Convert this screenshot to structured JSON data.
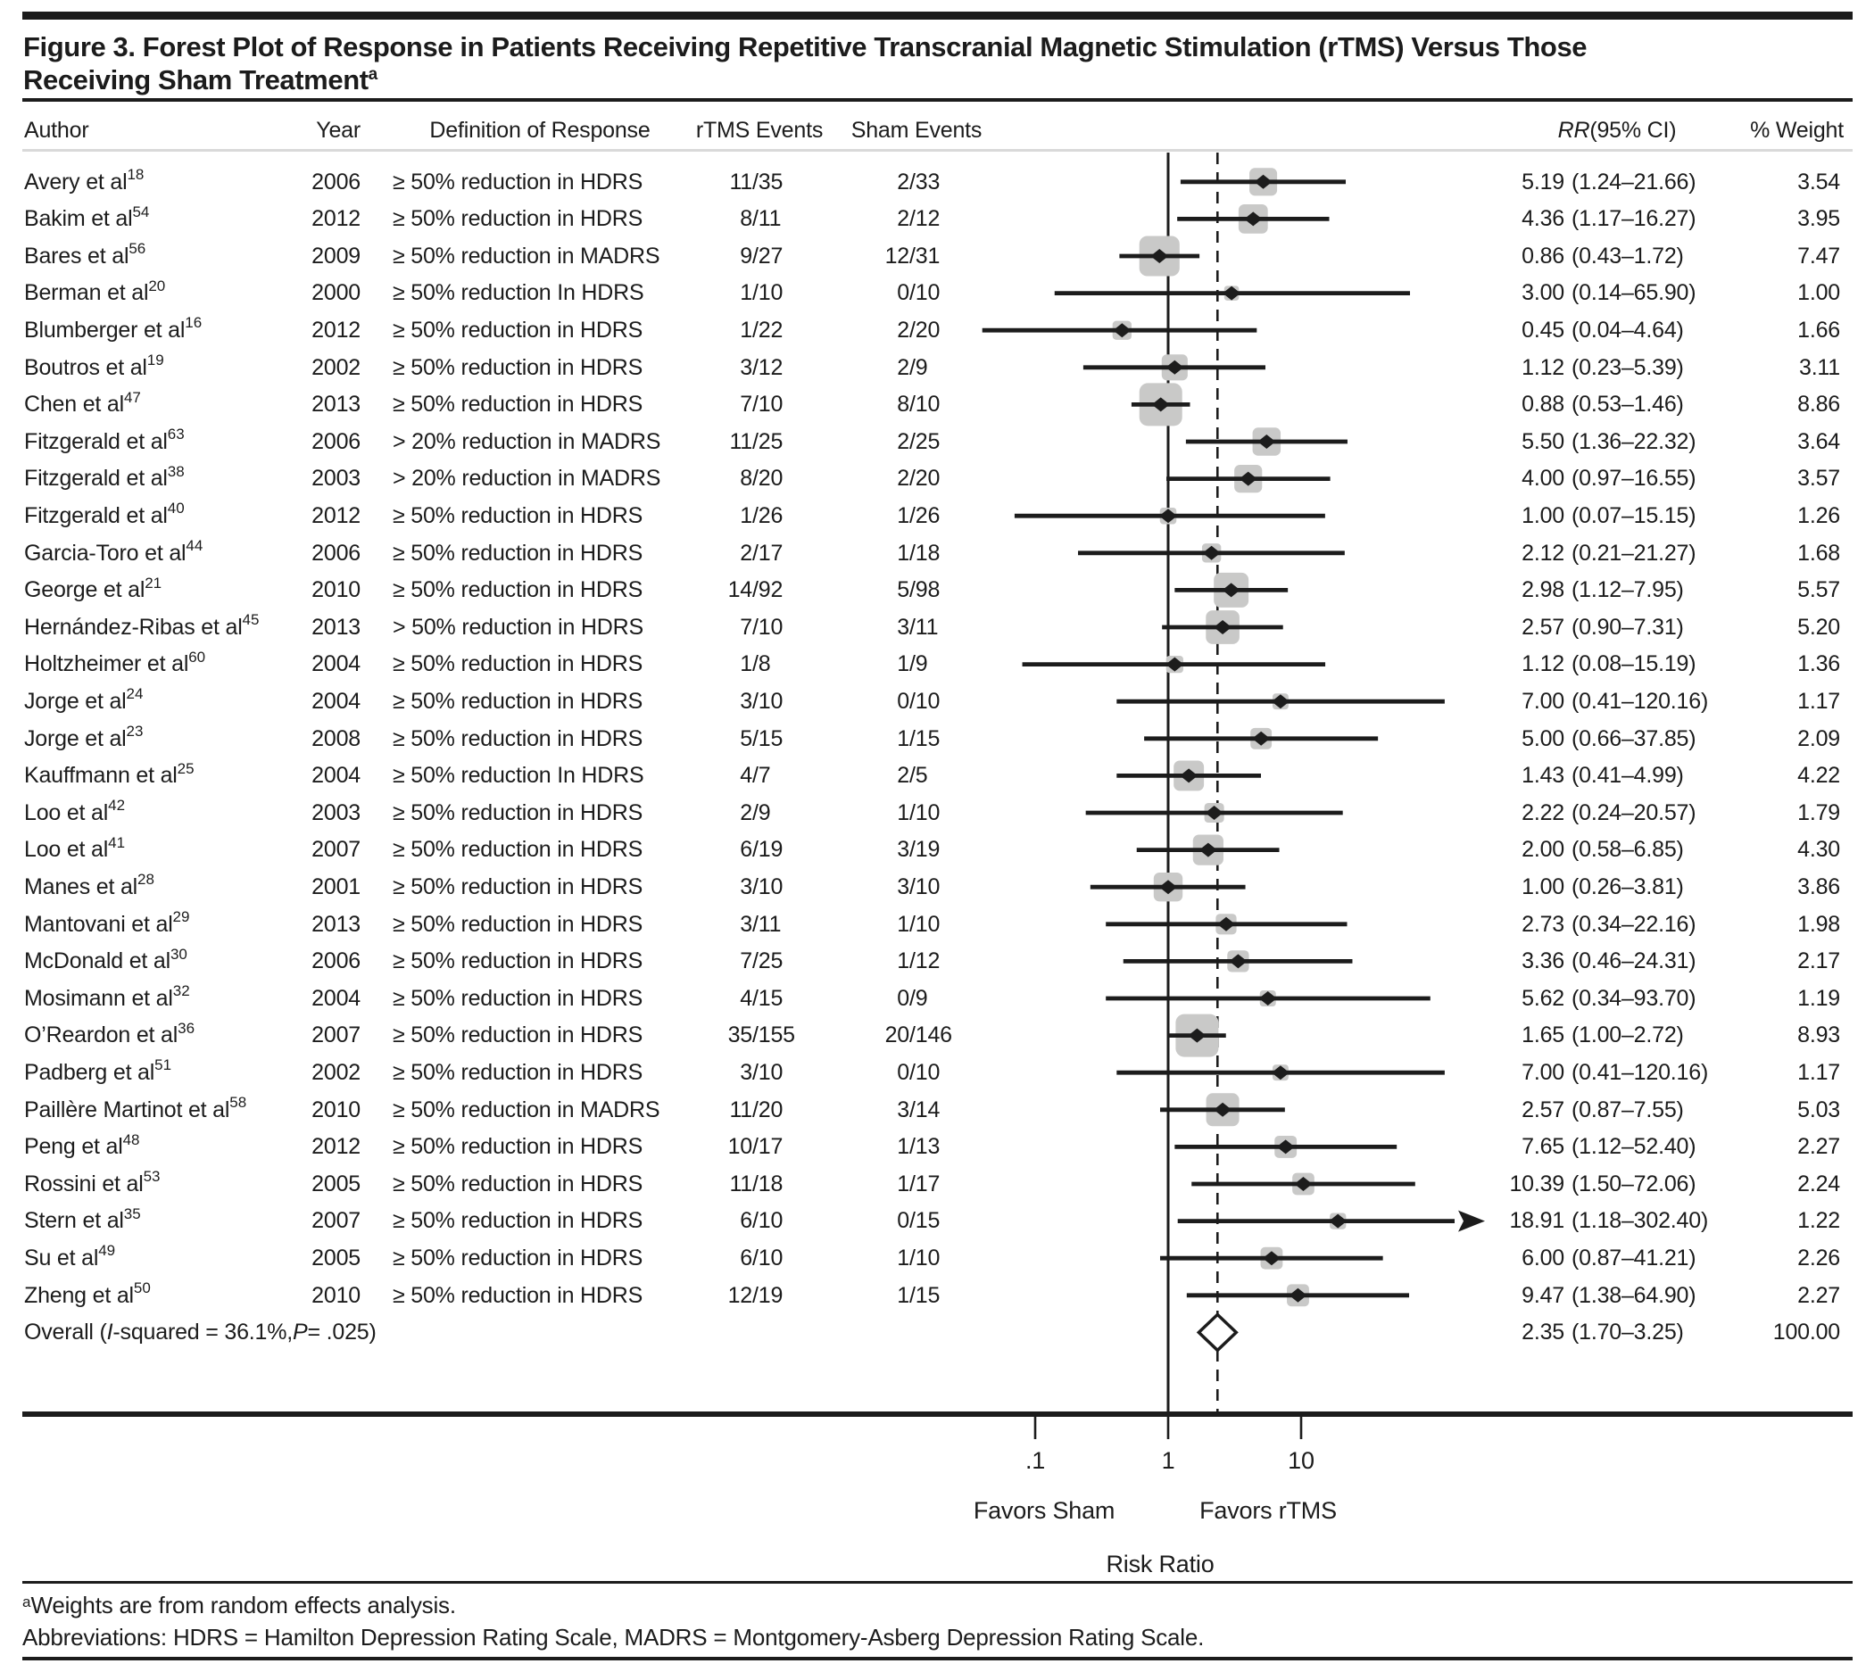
{
  "figure": {
    "title_line1": "Figure 3. Forest Plot of Response in Patients Receiving Repetitive Transcranial Magnetic Stimulation (rTMS) Versus Those",
    "title_line2": "Receiving Sham Treatment",
    "title_sup": "a"
  },
  "columns": {
    "author": "Author",
    "year": "Year",
    "definition": "Definition of Response",
    "rtms_events": "rTMS Events",
    "sham_events": "Sham Events",
    "rr_italic": "RR",
    "rr_rest": " (95% CI)",
    "weight": "% Weight"
  },
  "axis": {
    "tick_labels": [
      ".1",
      "1",
      "10"
    ],
    "favors_sham": "Favors Sham",
    "favors_rtms": "Favors rTMS",
    "xlabel": "Risk Ratio"
  },
  "footnotes": {
    "sup": "a",
    "line1": "Weights are from random effects analysis.",
    "line2": "Abbreviations: HDRS = Hamilton Depression Rating Scale, MADRS = Montgomery-Asberg Depression Rating Scale."
  },
  "colors": {
    "text": "#1c1c1c",
    "marker_fill": "#c9c9c8",
    "header_rule": "#d9d9d9"
  },
  "chart_data": {
    "type": "scatter",
    "variant": "forest_plot",
    "title": "Forest Plot of Response in Patients Receiving rTMS Versus Those Receiving Sham Treatment",
    "xlabel": "Risk Ratio",
    "x_scale": "log10",
    "x_tick_values": [
      0.1,
      1,
      10
    ],
    "reference_line": 1,
    "overall_dashed_line": 2.35,
    "legend_left": "Favors Sham",
    "legend_right": "Favors rTMS",
    "studies": [
      {
        "author": "Avery et al",
        "ref": "18",
        "year": "2006",
        "definition": "≥ 50% reduction in HDRS",
        "rtms_events": "11/35",
        "sham_events": "2/33",
        "rr": 5.19,
        "ci_lo": 1.24,
        "ci_hi": 21.66,
        "rr_label": "5.19",
        "ci_label": "(1.24–21.66)",
        "weight": 3.54,
        "weight_label": "3.54",
        "arrow": false
      },
      {
        "author": "Bakim et al",
        "ref": "54",
        "year": "2012",
        "definition": "≥ 50% reduction in HDRS",
        "rtms_events": "8/11",
        "sham_events": "2/12",
        "rr": 4.36,
        "ci_lo": 1.17,
        "ci_hi": 16.27,
        "rr_label": "4.36",
        "ci_label": "(1.17–16.27)",
        "weight": 3.95,
        "weight_label": "3.95",
        "arrow": false
      },
      {
        "author": "Bares et al",
        "ref": "56",
        "year": "2009",
        "definition": "≥ 50% reduction in MADRS",
        "rtms_events": "9/27",
        "sham_events": "12/31",
        "rr": 0.86,
        "ci_lo": 0.43,
        "ci_hi": 1.72,
        "rr_label": "0.86",
        "ci_label": "(0.43–1.72)",
        "weight": 7.47,
        "weight_label": "7.47",
        "arrow": false
      },
      {
        "author": "Berman et al",
        "ref": "20",
        "year": "2000",
        "definition": "≥ 50% reduction In HDRS",
        "rtms_events": "1/10",
        "sham_events": "0/10",
        "rr": 3.0,
        "ci_lo": 0.14,
        "ci_hi": 65.9,
        "rr_label": "3.00",
        "ci_label": "(0.14–65.90)",
        "weight": 1.0,
        "weight_label": "1.00",
        "arrow": false
      },
      {
        "author": "Blumberger et al",
        "ref": "16",
        "year": "2012",
        "definition": "≥ 50% reduction in HDRS",
        "rtms_events": "1/22",
        "sham_events": "2/20",
        "rr": 0.45,
        "ci_lo": 0.04,
        "ci_hi": 4.64,
        "rr_label": "0.45",
        "ci_label": "(0.04–4.64)",
        "weight": 1.66,
        "weight_label": "1.66",
        "arrow": false
      },
      {
        "author": "Boutros et al",
        "ref": "19",
        "year": "2002",
        "definition": "≥ 50% reduction in HDRS",
        "rtms_events": "3/12",
        "sham_events": "2/9",
        "rr": 1.12,
        "ci_lo": 0.23,
        "ci_hi": 5.39,
        "rr_label": "1.12",
        "ci_label": "(0.23–5.39)",
        "weight": 3.11,
        "weight_label": "3.11",
        "arrow": false
      },
      {
        "author": "Chen et al",
        "ref": "47",
        "year": "2013",
        "definition": "≥ 50% reduction in HDRS",
        "rtms_events": "7/10",
        "sham_events": "8/10",
        "rr": 0.88,
        "ci_lo": 0.53,
        "ci_hi": 1.46,
        "rr_label": "0.88",
        "ci_label": "(0.53–1.46)",
        "weight": 8.86,
        "weight_label": "8.86",
        "arrow": false
      },
      {
        "author": "Fitzgerald et al",
        "ref": "63",
        "year": "2006",
        "definition": "> 20% reduction in MADRS",
        "rtms_events": "11/25",
        "sham_events": "2/25",
        "rr": 5.5,
        "ci_lo": 1.36,
        "ci_hi": 22.32,
        "rr_label": "5.50",
        "ci_label": "(1.36–22.32)",
        "weight": 3.64,
        "weight_label": "3.64",
        "arrow": false
      },
      {
        "author": "Fitzgerald et al",
        "ref": "38",
        "year": "2003",
        "definition": "> 20% reduction in MADRS",
        "rtms_events": "8/20",
        "sham_events": "2/20",
        "rr": 4.0,
        "ci_lo": 0.97,
        "ci_hi": 16.55,
        "rr_label": "4.00",
        "ci_label": "(0.97–16.55)",
        "weight": 3.57,
        "weight_label": "3.57",
        "arrow": false
      },
      {
        "author": "Fitzgerald et al",
        "ref": "40",
        "year": "2012",
        "definition": "≥ 50% reduction in HDRS",
        "rtms_events": "1/26",
        "sham_events": "1/26",
        "rr": 1.0,
        "ci_lo": 0.07,
        "ci_hi": 15.15,
        "rr_label": "1.00",
        "ci_label": "(0.07–15.15)",
        "weight": 1.26,
        "weight_label": "1.26",
        "arrow": false
      },
      {
        "author": "Garcia-Toro et al",
        "ref": "44",
        "year": "2006",
        "definition": "≥ 50% reduction in HDRS",
        "rtms_events": "2/17",
        "sham_events": "1/18",
        "rr": 2.12,
        "ci_lo": 0.21,
        "ci_hi": 21.27,
        "rr_label": "2.12",
        "ci_label": "(0.21–21.27)",
        "weight": 1.68,
        "weight_label": "1.68",
        "arrow": false
      },
      {
        "author": "George et al",
        "ref": "21",
        "year": "2010",
        "definition": "≥ 50% reduction in HDRS",
        "rtms_events": "14/92",
        "sham_events": "5/98",
        "rr": 2.98,
        "ci_lo": 1.12,
        "ci_hi": 7.95,
        "rr_label": "2.98",
        "ci_label": "(1.12–7.95)",
        "weight": 5.57,
        "weight_label": "5.57",
        "arrow": false
      },
      {
        "author": "Hernández-Ribas et al",
        "ref": "45",
        "year": "2013",
        "definition": "> 50% reduction in HDRS",
        "rtms_events": "7/10",
        "sham_events": "3/11",
        "rr": 2.57,
        "ci_lo": 0.9,
        "ci_hi": 7.31,
        "rr_label": "2.57",
        "ci_label": "(0.90–7.31)",
        "weight": 5.2,
        "weight_label": "5.20",
        "arrow": false
      },
      {
        "author": "Holtzheimer et al",
        "ref": "60",
        "year": "2004",
        "definition": "≥ 50% reduction in HDRS",
        "rtms_events": "1/8",
        "sham_events": "1/9",
        "rr": 1.12,
        "ci_lo": 0.08,
        "ci_hi": 15.19,
        "rr_label": "1.12",
        "ci_label": "(0.08–15.19)",
        "weight": 1.36,
        "weight_label": "1.36",
        "arrow": false
      },
      {
        "author": "Jorge et al",
        "ref": "24",
        "year": "2004",
        "definition": "≥ 50% reduction in HDRS",
        "rtms_events": "3/10",
        "sham_events": "0/10",
        "rr": 7.0,
        "ci_lo": 0.41,
        "ci_hi": 120.16,
        "rr_label": "7.00",
        "ci_label": "(0.41–120.16)",
        "weight": 1.17,
        "weight_label": "1.17",
        "arrow": false
      },
      {
        "author": "Jorge et al",
        "ref": "23",
        "year": "2008",
        "definition": "≥ 50% reduction in HDRS",
        "rtms_events": "5/15",
        "sham_events": "1/15",
        "rr": 5.0,
        "ci_lo": 0.66,
        "ci_hi": 37.85,
        "rr_label": "5.00",
        "ci_label": "(0.66–37.85)",
        "weight": 2.09,
        "weight_label": "2.09",
        "arrow": false
      },
      {
        "author": "Kauffmann et al",
        "ref": "25",
        "year": "2004",
        "definition": "≥ 50% reduction In HDRS",
        "rtms_events": "4/7",
        "sham_events": "2/5",
        "rr": 1.43,
        "ci_lo": 0.41,
        "ci_hi": 4.99,
        "rr_label": "1.43",
        "ci_label": "(0.41–4.99)",
        "weight": 4.22,
        "weight_label": "4.22",
        "arrow": false
      },
      {
        "author": "Loo et al",
        "ref": "42",
        "year": "2003",
        "definition": "≥ 50% reduction in HDRS",
        "rtms_events": "2/9",
        "sham_events": "1/10",
        "rr": 2.22,
        "ci_lo": 0.24,
        "ci_hi": 20.57,
        "rr_label": "2.22",
        "ci_label": "(0.24–20.57)",
        "weight": 1.79,
        "weight_label": "1.79",
        "arrow": false
      },
      {
        "author": "Loo et al",
        "ref": "41",
        "year": "2007",
        "definition": "≥ 50% reduction in HDRS",
        "rtms_events": "6/19",
        "sham_events": "3/19",
        "rr": 2.0,
        "ci_lo": 0.58,
        "ci_hi": 6.85,
        "rr_label": "2.00",
        "ci_label": "(0.58–6.85)",
        "weight": 4.3,
        "weight_label": "4.30",
        "arrow": false
      },
      {
        "author": "Manes et al",
        "ref": "28",
        "year": "2001",
        "definition": "≥ 50% reduction in HDRS",
        "rtms_events": "3/10",
        "sham_events": "3/10",
        "rr": 1.0,
        "ci_lo": 0.26,
        "ci_hi": 3.81,
        "rr_label": "1.00",
        "ci_label": "(0.26–3.81)",
        "weight": 3.86,
        "weight_label": "3.86",
        "arrow": false
      },
      {
        "author": "Mantovani et al",
        "ref": "29",
        "year": "2013",
        "definition": "≥ 50% reduction in HDRS",
        "rtms_events": "3/11",
        "sham_events": "1/10",
        "rr": 2.73,
        "ci_lo": 0.34,
        "ci_hi": 22.16,
        "rr_label": "2.73",
        "ci_label": "(0.34–22.16)",
        "weight": 1.98,
        "weight_label": "1.98",
        "arrow": false
      },
      {
        "author": "McDonald et al",
        "ref": "30",
        "year": "2006",
        "definition": "≥ 50% reduction in HDRS",
        "rtms_events": "7/25",
        "sham_events": "1/12",
        "rr": 3.36,
        "ci_lo": 0.46,
        "ci_hi": 24.31,
        "rr_label": "3.36",
        "ci_label": "(0.46–24.31)",
        "weight": 2.17,
        "weight_label": "2.17",
        "arrow": false
      },
      {
        "author": "Mosimann et al",
        "ref": "32",
        "year": "2004",
        "definition": "≥ 50% reduction in HDRS",
        "rtms_events": "4/15",
        "sham_events": "0/9",
        "rr": 5.62,
        "ci_lo": 0.34,
        "ci_hi": 93.7,
        "rr_label": "5.62",
        "ci_label": "(0.34–93.70)",
        "weight": 1.19,
        "weight_label": "1.19",
        "arrow": false
      },
      {
        "author": "O’Reardon et al",
        "ref": "36",
        "year": "2007",
        "definition": "≥ 50% reduction in HDRS",
        "rtms_events": "35/155",
        "sham_events": "20/146",
        "rr": 1.65,
        "ci_lo": 1.0,
        "ci_hi": 2.72,
        "rr_label": "1.65",
        "ci_label": "(1.00–2.72)",
        "weight": 8.93,
        "weight_label": "8.93",
        "arrow": false
      },
      {
        "author": "Padberg et al",
        "ref": "51",
        "year": "2002",
        "definition": "≥ 50% reduction in HDRS",
        "rtms_events": "3/10",
        "sham_events": "0/10",
        "rr": 7.0,
        "ci_lo": 0.41,
        "ci_hi": 120.16,
        "rr_label": "7.00",
        "ci_label": "(0.41–120.16)",
        "weight": 1.17,
        "weight_label": "1.17",
        "arrow": false
      },
      {
        "author": "Paillère Martinot et al",
        "ref": "58",
        "year": "2010",
        "definition": "≥ 50% reduction in MADRS",
        "rtms_events": "11/20",
        "sham_events": "3/14",
        "rr": 2.57,
        "ci_lo": 0.87,
        "ci_hi": 7.55,
        "rr_label": "2.57",
        "ci_label": "(0.87–7.55)",
        "weight": 5.03,
        "weight_label": "5.03",
        "arrow": false
      },
      {
        "author": "Peng et al",
        "ref": "48",
        "year": "2012",
        "definition": "≥ 50% reduction in HDRS",
        "rtms_events": "10/17",
        "sham_events": "1/13",
        "rr": 7.65,
        "ci_lo": 1.12,
        "ci_hi": 52.4,
        "rr_label": "7.65",
        "ci_label": "(1.12–52.40)",
        "weight": 2.27,
        "weight_label": "2.27",
        "arrow": false
      },
      {
        "author": "Rossini et al",
        "ref": "53",
        "year": "2005",
        "definition": "≥ 50% reduction in HDRS",
        "rtms_events": "11/18",
        "sham_events": "1/17",
        "rr": 10.39,
        "ci_lo": 1.5,
        "ci_hi": 72.06,
        "rr_label": "10.39",
        "ci_label": "(1.50–72.06)",
        "weight": 2.24,
        "weight_label": "2.24",
        "arrow": false
      },
      {
        "author": "Stern et al",
        "ref": "35",
        "year": "2007",
        "definition": "≥ 50% reduction in HDRS",
        "rtms_events": "6/10",
        "sham_events": "0/15",
        "rr": 18.91,
        "ci_lo": 1.18,
        "ci_hi": 302.4,
        "rr_label": "18.91",
        "ci_label": "(1.18–302.40)",
        "weight": 1.22,
        "weight_label": "1.22",
        "arrow": true
      },
      {
        "author": "Su et al",
        "ref": "49",
        "year": "2005",
        "definition": "≥ 50% reduction in HDRS",
        "rtms_events": "6/10",
        "sham_events": "1/10",
        "rr": 6.0,
        "ci_lo": 0.87,
        "ci_hi": 41.21,
        "rr_label": "6.00",
        "ci_label": "(0.87–41.21)",
        "weight": 2.26,
        "weight_label": "2.26",
        "arrow": false
      },
      {
        "author": "Zheng et al",
        "ref": "50",
        "year": "2010",
        "definition": "≥ 50% reduction in HDRS",
        "rtms_events": "12/19",
        "sham_events": "1/15",
        "rr": 9.47,
        "ci_lo": 1.38,
        "ci_hi": 64.9,
        "rr_label": "9.47",
        "ci_label": "(1.38–64.90)",
        "weight": 2.27,
        "weight_label": "2.27",
        "arrow": false
      }
    ],
    "overall": {
      "label_pre": "Overall (",
      "label_i": "I",
      "label_mid": "-squared = 36.1%, ",
      "label_p": "P",
      "label_post": " = .025)",
      "rr": 2.35,
      "ci_lo": 1.7,
      "ci_hi": 3.25,
      "rr_label": "2.35",
      "ci_label": "(1.70–3.25)",
      "weight_label": "100.00"
    }
  }
}
